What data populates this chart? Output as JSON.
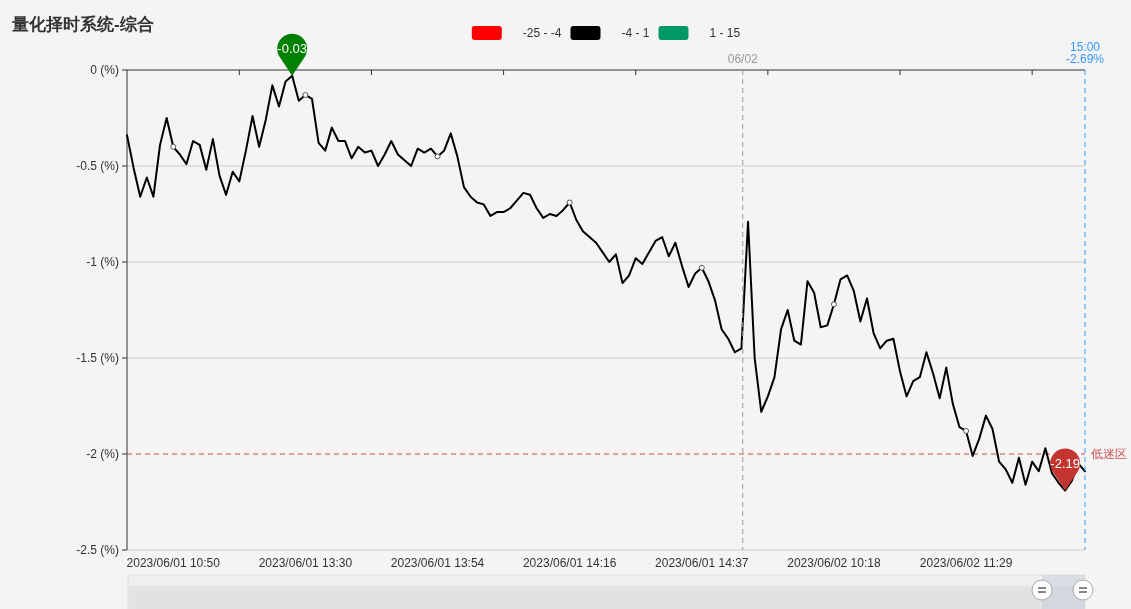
{
  "chart_data": {
    "type": "line",
    "title": "量化择时系统-综合",
    "categories": [
      null,
      null,
      null,
      null,
      null,
      null,
      null,
      "2023/06/01 10:50",
      null,
      null,
      null,
      null,
      null,
      null,
      null,
      null,
      null,
      null,
      null,
      null,
      null,
      null,
      null,
      null,
      null,
      null,
      null,
      "2023/06/01 13:30",
      null,
      null,
      null,
      null,
      null,
      null,
      null,
      null,
      null,
      null,
      null,
      null,
      null,
      null,
      null,
      null,
      null,
      null,
      null,
      "2023/06/01 13:54",
      null,
      null,
      null,
      null,
      null,
      null,
      null,
      null,
      null,
      null,
      null,
      null,
      null,
      null,
      null,
      null,
      null,
      null,
      null,
      "2023/06/01 14:16",
      null,
      null,
      null,
      null,
      null,
      null,
      null,
      null,
      null,
      null,
      null,
      null,
      null,
      null,
      null,
      null,
      null,
      null,
      null,
      "2023/06/01 14:37",
      null,
      null,
      null,
      null,
      null,
      null,
      null,
      null,
      null,
      null,
      null,
      null,
      null,
      null,
      null,
      null,
      null,
      null,
      null,
      "2023/06/02 10:18",
      null,
      null,
      null,
      null,
      null,
      null,
      null,
      null,
      null,
      null,
      null,
      null,
      null,
      null,
      null,
      null,
      null,
      null,
      null,
      "2023/06/02 11:29",
      null,
      null,
      null,
      null,
      null,
      null,
      null,
      null,
      null,
      null,
      null,
      null,
      null,
      null,
      null,
      null,
      null,
      null
    ],
    "series": [
      {
        "name": "-25 - -4",
        "color": "#ff0000",
        "values": [
          null,
          null,
          null,
          null,
          null,
          null,
          null,
          null,
          null,
          null,
          null,
          null,
          null,
          null,
          null,
          null,
          null,
          null,
          null,
          null,
          null,
          null,
          null,
          null,
          null,
          null,
          null,
          null,
          null,
          null,
          null,
          null,
          null,
          null,
          null,
          null,
          null,
          null,
          null,
          null,
          null,
          null,
          null,
          null,
          null,
          null,
          null,
          null,
          null,
          null,
          null,
          null,
          null,
          null,
          null,
          null,
          null,
          null,
          null,
          null,
          null,
          null,
          null,
          null,
          null,
          null,
          null,
          null,
          null,
          null,
          null,
          null,
          null,
          null,
          null,
          null,
          null,
          null,
          null,
          null,
          null,
          null,
          null,
          null,
          null,
          null,
          null,
          null,
          null,
          null,
          null,
          null,
          null,
          null,
          null,
          null,
          null,
          null,
          null,
          null,
          null,
          null,
          null,
          null,
          null,
          null,
          null,
          null,
          null,
          null,
          null,
          null,
          null,
          null,
          null,
          null,
          null,
          null,
          null,
          null,
          null,
          null,
          null,
          null,
          null,
          null,
          null,
          null,
          null,
          null,
          null,
          null,
          null,
          null,
          null,
          null,
          null,
          null,
          null,
          null,
          null,
          null,
          null,
          null,
          null,
          null
        ]
      },
      {
        "name": "-4 - 1",
        "color": "#000000",
        "values": [
          -0.34,
          -0.51,
          -0.66,
          -0.56,
          -0.66,
          -0.39,
          -0.25,
          -0.4,
          -0.44,
          -0.49,
          -0.37,
          -0.39,
          -0.52,
          -0.36,
          -0.55,
          -0.65,
          -0.53,
          -0.58,
          -0.42,
          -0.24,
          -0.4,
          -0.26,
          -0.08,
          -0.19,
          -0.06,
          -0.03,
          -0.16,
          -0.13,
          -0.15,
          -0.38,
          -0.42,
          -0.3,
          -0.37,
          -0.37,
          -0.46,
          -0.4,
          -0.43,
          -0.42,
          -0.5,
          -0.44,
          -0.37,
          -0.44,
          -0.47,
          -0.5,
          -0.41,
          -0.43,
          -0.41,
          -0.45,
          -0.42,
          -0.33,
          -0.45,
          -0.61,
          -0.66,
          -0.69,
          -0.7,
          -0.76,
          -0.74,
          -0.74,
          -0.72,
          -0.68,
          -0.64,
          -0.65,
          -0.72,
          -0.77,
          -0.75,
          -0.76,
          -0.73,
          -0.69,
          -0.78,
          -0.84,
          -0.87,
          -0.9,
          -0.95,
          -1.0,
          -0.96,
          -1.11,
          -1.07,
          -0.98,
          -1.01,
          -0.95,
          -0.89,
          -0.87,
          -0.97,
          -0.9,
          -1.02,
          -1.13,
          -1.06,
          -1.03,
          -1.1,
          -1.2,
          -1.35,
          -1.4,
          -1.47,
          -1.45,
          -0.79,
          -1.5,
          -1.78,
          -1.7,
          -1.6,
          -1.35,
          -1.25,
          -1.41,
          -1.43,
          -1.1,
          -1.16,
          -1.34,
          -1.33,
          -1.22,
          -1.09,
          -1.07,
          -1.15,
          -1.31,
          -1.19,
          -1.37,
          -1.45,
          -1.41,
          -1.4,
          -1.57,
          -1.7,
          -1.62,
          -1.6,
          -1.47,
          -1.58,
          -1.71,
          -1.55,
          -1.74,
          -1.86,
          -1.88,
          -2.01,
          -1.92,
          -1.8,
          -1.87,
          -2.04,
          -2.08,
          -2.15,
          -2.02,
          -2.16,
          -2.04,
          -2.09,
          -1.97,
          -2.1,
          -2.15,
          -2.19,
          -2.14,
          -2.05,
          -2.09
        ]
      },
      {
        "name": "1 - 15",
        "color": "#009966",
        "values": [
          null,
          null,
          null,
          null,
          null,
          null,
          null,
          null,
          null,
          null,
          null,
          null,
          null,
          null,
          null,
          null,
          null,
          null,
          null,
          null,
          null,
          null,
          null,
          null,
          null,
          null,
          null,
          null,
          null,
          null,
          null,
          null,
          null,
          null,
          null,
          null,
          null,
          null,
          null,
          null,
          null,
          null,
          null,
          null,
          null,
          null,
          null,
          null,
          null,
          null,
          null,
          null,
          null,
          null,
          null,
          null,
          null,
          null,
          null,
          null,
          null,
          null,
          null,
          null,
          null,
          null,
          null,
          null,
          null,
          null,
          null,
          null,
          null,
          null,
          null,
          null,
          null,
          null,
          null,
          null,
          null,
          null,
          null,
          null,
          null,
          null,
          null,
          null,
          null,
          null,
          null,
          null,
          null,
          null,
          null,
          null,
          null,
          null,
          null,
          null,
          null,
          null,
          null,
          null,
          null,
          null,
          null,
          null,
          null,
          null,
          null,
          null,
          null,
          null,
          null,
          null,
          null,
          null,
          null,
          null,
          null,
          null,
          null,
          null,
          null,
          null,
          null,
          null,
          null,
          null,
          null,
          null,
          null,
          null,
          null,
          null,
          null,
          null,
          null,
          null,
          null,
          null,
          null,
          null,
          null,
          null
        ]
      },
      {
        "type": "scatter",
        "color": "#555555",
        "marker": "circle",
        "values": [
          null,
          null,
          null,
          null,
          null,
          null,
          null,
          -0.4,
          null,
          null,
          null,
          null,
          null,
          null,
          null,
          null,
          null,
          null,
          null,
          null,
          null,
          null,
          null,
          null,
          null,
          null,
          null,
          -0.13,
          null,
          null,
          null,
          null,
          null,
          null,
          null,
          null,
          null,
          null,
          null,
          null,
          null,
          null,
          null,
          null,
          null,
          null,
          null,
          -0.45,
          null,
          null,
          null,
          null,
          null,
          null,
          null,
          null,
          null,
          null,
          null,
          null,
          null,
          null,
          null,
          null,
          null,
          null,
          null,
          -0.69,
          null,
          null,
          null,
          null,
          null,
          null,
          null,
          null,
          null,
          null,
          null,
          null,
          null,
          null,
          null,
          null,
          null,
          null,
          null,
          -1.03,
          null,
          null,
          null,
          null,
          null,
          null,
          null,
          null,
          null,
          null,
          null,
          null,
          null,
          null,
          null,
          null,
          null,
          null,
          null,
          -1.22,
          null,
          null,
          null,
          null,
          null,
          null,
          null,
          null,
          null,
          null,
          null,
          null,
          null,
          null,
          null,
          null,
          null,
          null,
          null,
          -1.88,
          null,
          null,
          null,
          null,
          null,
          null,
          null,
          null,
          null,
          null,
          null,
          null,
          null,
          null,
          null,
          null,
          null,
          null
        ]
      }
    ],
    "ylim": [
      -2.5,
      0
    ],
    "yticks": [
      {
        "value": 0,
        "label": "0 (%)"
      },
      {
        "value": -0.5,
        "label": "-0.5 (%)"
      },
      {
        "value": -1,
        "label": "-1 (%)"
      },
      {
        "value": -1.5,
        "label": "-1.5 (%)"
      },
      {
        "value": -2,
        "label": "-2 (%)"
      },
      {
        "value": -2.5,
        "label": "-2.5 (%)"
      }
    ],
    "grid": "y",
    "legend": "top",
    "line_style": "solid",
    "ref_lines": [
      {
        "axis": "y",
        "value": -2,
        "label": "低迷区",
        "color": "#cc4b4b",
        "line_style": "dashed"
      }
    ],
    "annotations": [
      {
        "text": "-0.03",
        "y": -0.03
      },
      {
        "text": "-2.19",
        "y": -2.19
      },
      "06/02",
      "15:00\n-2.69%"
    ]
  }
}
